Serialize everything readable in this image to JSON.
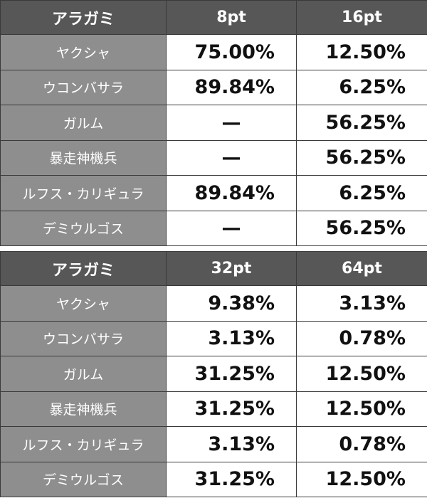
{
  "tables": [
    {
      "header": [
        "アラガミ",
        "8pt",
        "16pt"
      ],
      "rows": [
        [
          "ヤクシャ",
          "75.00%",
          "12.50%"
        ],
        [
          "ウコンバサラ",
          "89.84%",
          "6.25%"
        ],
        [
          "ガルム",
          "—",
          "56.25%"
        ],
        [
          "暴走神機兵",
          "—",
          "56.25%"
        ],
        [
          "ルフス・カリギュラ",
          "89.84%",
          "6.25%"
        ],
        [
          "デミウルゴス",
          "—",
          "56.25%"
        ]
      ]
    },
    {
      "header": [
        "アラガミ",
        "32pt",
        "64pt"
      ],
      "rows": [
        [
          "ヤクシャ",
          "9.38%",
          "3.13%"
        ],
        [
          "ウコンバサラ",
          "3.13%",
          "0.78%"
        ],
        [
          "ガルム",
          "31.25%",
          "12.50%"
        ],
        [
          "暴走神機兵",
          "31.25%",
          "12.50%"
        ],
        [
          "ルフス・カリギュラ",
          "3.13%",
          "0.78%"
        ],
        [
          "デミウルゴス",
          "31.25%",
          "12.50%"
        ]
      ]
    }
  ]
}
